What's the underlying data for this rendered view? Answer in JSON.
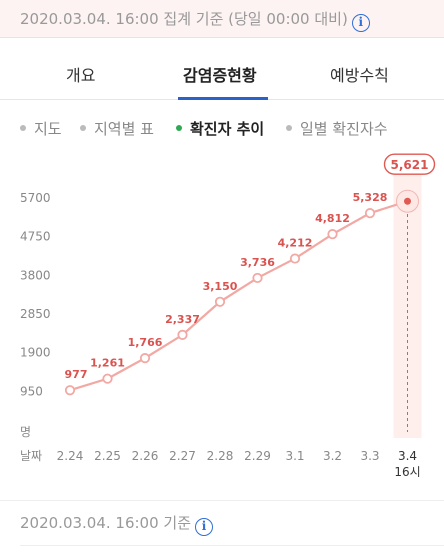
{
  "header": {
    "timestamp": "2020.03.04. 16:00 집계 기준 (당일 00:00 대비)",
    "info_icon": "info-icon"
  },
  "tabs": [
    {
      "label": "개요",
      "active": false
    },
    {
      "label": "감염증현황",
      "active": true
    },
    {
      "label": "예방수칙",
      "active": false
    }
  ],
  "subtabs": [
    {
      "label": "지도",
      "active": false
    },
    {
      "label": "지역별 표",
      "active": false
    },
    {
      "label": "확진자 추이",
      "active": true
    },
    {
      "label": "일별 확진자수",
      "active": false
    }
  ],
  "chart_data": {
    "type": "line",
    "categories": [
      "2.24",
      "2.25",
      "2.26",
      "2.27",
      "2.28",
      "2.29",
      "3.1",
      "3.2",
      "3.3",
      "3.4"
    ],
    "categories_sub": [
      "",
      "",
      "",
      "",
      "",
      "",
      "",
      "",
      "",
      "16시"
    ],
    "values": [
      977,
      1261,
      1766,
      2337,
      3150,
      3736,
      4212,
      4812,
      5328,
      5621
    ],
    "value_labels": [
      "977",
      "1,261",
      "1,766",
      "2,337",
      "3,150",
      "3,736",
      "4,212",
      "4,812",
      "5,328",
      "5,621"
    ],
    "y_ticks": [
      "5700",
      "4750",
      "3800",
      "2850",
      "1900",
      "950"
    ],
    "y_unit": "명",
    "x_unit": "날짜",
    "ylim": [
      0,
      5700
    ],
    "highlight_index": 9,
    "colors": {
      "line": "#f2a8a3",
      "marker_fill": "#ffffff",
      "label": "#d9534f",
      "highlight_bg": "#fde8e6",
      "highlight_dot": "#e05a52"
    }
  },
  "footer": {
    "timestamp": "2020.03.04. 16:00 기준",
    "info_icon": "info-icon"
  }
}
